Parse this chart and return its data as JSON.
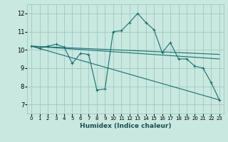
{
  "title": "",
  "xlabel": "Humidex (Indice chaleur)",
  "xlim": [
    -0.5,
    23.5
  ],
  "ylim": [
    6.5,
    12.5
  ],
  "xticks": [
    0,
    1,
    2,
    3,
    4,
    5,
    6,
    7,
    8,
    9,
    10,
    11,
    12,
    13,
    14,
    15,
    16,
    17,
    18,
    19,
    20,
    21,
    22,
    23
  ],
  "yticks": [
    7,
    8,
    9,
    10,
    11,
    12
  ],
  "background_color": "#c8e8e0",
  "grid_color": "#a0c8c0",
  "line_color": "#1a7070",
  "main_line": {
    "x": [
      0,
      1,
      2,
      3,
      4,
      5,
      6,
      7,
      8,
      9,
      10,
      11,
      12,
      13,
      14,
      15,
      16,
      17,
      18,
      19,
      20,
      21,
      22,
      23
    ],
    "y": [
      10.2,
      10.1,
      10.2,
      10.3,
      10.15,
      9.25,
      9.8,
      9.75,
      7.8,
      7.85,
      11.0,
      11.05,
      11.5,
      12.0,
      11.5,
      11.1,
      9.85,
      10.4,
      9.5,
      9.5,
      9.1,
      9.0,
      8.2,
      7.25
    ]
  },
  "ref_lines": [
    {
      "x": [
        0,
        23
      ],
      "y": [
        10.2,
        7.25
      ]
    },
    {
      "x": [
        0,
        23
      ],
      "y": [
        10.2,
        9.5
      ]
    },
    {
      "x": [
        0,
        23
      ],
      "y": [
        10.2,
        9.75
      ]
    }
  ]
}
